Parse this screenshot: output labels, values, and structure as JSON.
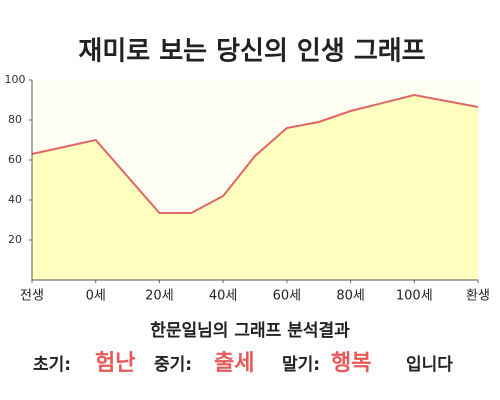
{
  "chart_data": {
    "type": "area",
    "title": "재미로 보는 당신의 인생 그래프",
    "x": [
      -20,
      0,
      20,
      30,
      40,
      50,
      60,
      70,
      80,
      100,
      120
    ],
    "values": [
      63,
      70,
      33.5,
      33.5,
      42,
      62,
      76,
      79,
      84.5,
      92.5,
      86.5
    ],
    "line_color": "#e06666",
    "fill_color": "#ffffc0",
    "xlim": [
      -20,
      120
    ],
    "xticks": [
      {
        "value": -20,
        "label": "전생"
      },
      {
        "value": 0,
        "label": "0세"
      },
      {
        "value": 20,
        "label": "20세"
      },
      {
        "value": 40,
        "label": "40세"
      },
      {
        "value": 60,
        "label": "60세"
      },
      {
        "value": 80,
        "label": "80세"
      },
      {
        "value": 100,
        "label": "100세"
      },
      {
        "value": 120,
        "label": "환생"
      }
    ],
    "ylim": [
      0,
      100
    ],
    "yticks": [
      20,
      40,
      60,
      80,
      100
    ],
    "grid": false
  },
  "result": {
    "heading": "한문일님의 그래프 분석결과",
    "early_label": "초기:",
    "early": "험난",
    "middle_label": "중기:",
    "middle": "출세",
    "late_label": "말기:",
    "late": "행복",
    "ending": "입니다"
  }
}
